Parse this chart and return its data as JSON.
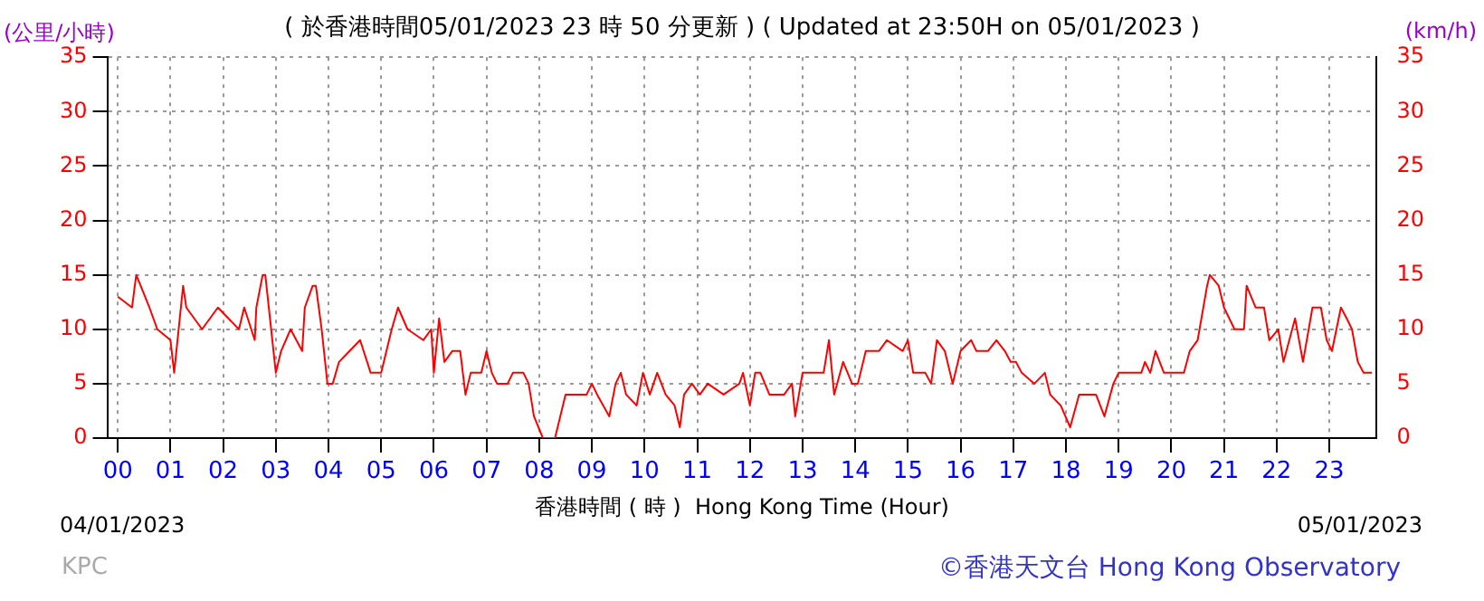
{
  "chart_data": {
    "type": "line",
    "title": "( 於香港時間05/01/2023 23 時 50 分更新 ) ( Updated at 23:50H on 05/01/2023 )",
    "xlabel": "香港時間 ( 時 )  Hong Kong Time (Hour)",
    "ylabel": "(公里/小時)",
    "y2label": "(km/h)",
    "annotations": [
      "04/01/2023",
      "05/01/2023",
      "KPC",
      "©香港天文台 Hong Kong Observatory"
    ],
    "series": [
      {
        "color": "#ff0000",
        "x": [
          0,
          0.27,
          0.35,
          0.6,
          0.75,
          1.0,
          1.07,
          1.24,
          1.3,
          1.6,
          1.9,
          2.3,
          2.4,
          2.6,
          2.63,
          2.75,
          2.8,
          3.0,
          3.1,
          3.28,
          3.5,
          3.55,
          3.7,
          3.76,
          3.87,
          3.98,
          4.08,
          4.2,
          4.4,
          4.6,
          4.8,
          5.0,
          5.1,
          5.2,
          5.32,
          5.5,
          5.8,
          5.95,
          6.0,
          6.1,
          6.2,
          6.35,
          6.5,
          6.6,
          6.7,
          6.9,
          7.0,
          7.1,
          7.2,
          7.4,
          7.5,
          7.7,
          7.8,
          7.9,
          8.07,
          8.3,
          8.5,
          8.9,
          9.0,
          9.1,
          9.33,
          9.45,
          9.55,
          9.65,
          9.85,
          9.97,
          10.1,
          10.24,
          10.4,
          10.57,
          10.67,
          10.75,
          10.9,
          11.05,
          11.2,
          11.5,
          11.8,
          11.87,
          12.0,
          12.1,
          12.2,
          12.37,
          12.65,
          12.8,
          12.86,
          13.0,
          13.4,
          13.5,
          13.6,
          13.77,
          13.94,
          14.05,
          14.2,
          14.45,
          14.6,
          14.9,
          15.0,
          15.1,
          15.33,
          15.44,
          15.55,
          15.7,
          15.85,
          16.0,
          16.2,
          16.3,
          16.52,
          16.68,
          16.84,
          16.95,
          17.05,
          17.16,
          17.4,
          17.6,
          17.7,
          17.9,
          18.08,
          18.25,
          18.57,
          18.73,
          18.9,
          19.0,
          19.43,
          19.5,
          19.6,
          19.7,
          19.86,
          20.24,
          20.35,
          20.5,
          20.68,
          20.73,
          20.9,
          21.0,
          21.1,
          21.2,
          21.38,
          21.43,
          21.6,
          21.76,
          21.86,
          22.03,
          22.13,
          22.35,
          22.5,
          22.68,
          22.84,
          22.95,
          23.05,
          23.22,
          23.33,
          23.43,
          23.54,
          23.65,
          23.81
        ],
        "values": [
          13,
          12,
          15,
          12,
          10,
          9,
          6,
          14,
          12,
          10,
          12,
          10,
          12,
          9,
          12,
          15,
          15,
          6,
          8,
          10,
          8,
          12,
          14,
          14,
          10,
          5,
          5,
          7,
          8,
          9,
          6,
          6,
          8,
          10,
          12,
          10,
          9,
          10,
          6,
          11,
          7,
          8,
          8,
          4,
          6,
          6,
          8,
          6,
          5,
          5,
          6,
          6,
          5,
          2,
          0,
          0,
          4,
          4,
          5,
          4,
          2,
          5,
          6,
          4,
          3,
          6,
          4,
          6,
          4,
          3,
          1,
          4,
          5,
          4,
          5,
          4,
          5,
          6,
          3,
          6,
          6,
          4,
          4,
          5,
          2,
          6,
          6,
          9,
          4,
          7,
          5,
          5,
          8,
          8,
          9,
          8,
          9,
          6,
          6,
          5,
          9,
          8,
          5,
          8,
          9,
          8,
          8,
          9,
          8,
          7,
          7,
          6,
          5,
          6,
          4,
          3,
          1,
          4,
          4,
          2,
          5,
          6,
          6,
          7,
          6,
          8,
          6,
          6,
          8,
          9,
          14,
          15,
          14,
          12,
          11,
          10,
          10,
          14,
          12,
          12,
          9,
          10,
          7,
          11,
          7,
          12,
          12,
          9,
          8,
          12,
          11,
          10,
          7,
          6,
          6
        ]
      }
    ],
    "xlim": [
      -0.2,
      23.9
    ],
    "xticks": [
      {
        "value": 0,
        "label": "00"
      },
      {
        "value": 1,
        "label": "01"
      },
      {
        "value": 2,
        "label": "02"
      },
      {
        "value": 3,
        "label": "03"
      },
      {
        "value": 4,
        "label": "04"
      },
      {
        "value": 5,
        "label": "05"
      },
      {
        "value": 6,
        "label": "06"
      },
      {
        "value": 7,
        "label": "07"
      },
      {
        "value": 8,
        "label": "08"
      },
      {
        "value": 9,
        "label": "09"
      },
      {
        "value": 10,
        "label": "10"
      },
      {
        "value": 11,
        "label": "11"
      },
      {
        "value": 12,
        "label": "12"
      },
      {
        "value": 13,
        "label": "13"
      },
      {
        "value": 14,
        "label": "14"
      },
      {
        "value": 15,
        "label": "15"
      },
      {
        "value": 16,
        "label": "16"
      },
      {
        "value": 17,
        "label": "17"
      },
      {
        "value": 18,
        "label": "18"
      },
      {
        "value": 19,
        "label": "19"
      },
      {
        "value": 20,
        "label": "20"
      },
      {
        "value": 21,
        "label": "21"
      },
      {
        "value": 22,
        "label": "22"
      },
      {
        "value": 23,
        "label": "23"
      }
    ],
    "ylim": [
      0,
      35
    ],
    "yticks": [
      0,
      5,
      10,
      15,
      20,
      25,
      30,
      35
    ],
    "y2lim": [
      0,
      35
    ],
    "y2ticks": [
      0,
      5,
      10,
      15,
      20,
      25,
      30,
      35
    ],
    "grid": true,
    "legend": false,
    "marker": "none",
    "line_style": "solid"
  }
}
